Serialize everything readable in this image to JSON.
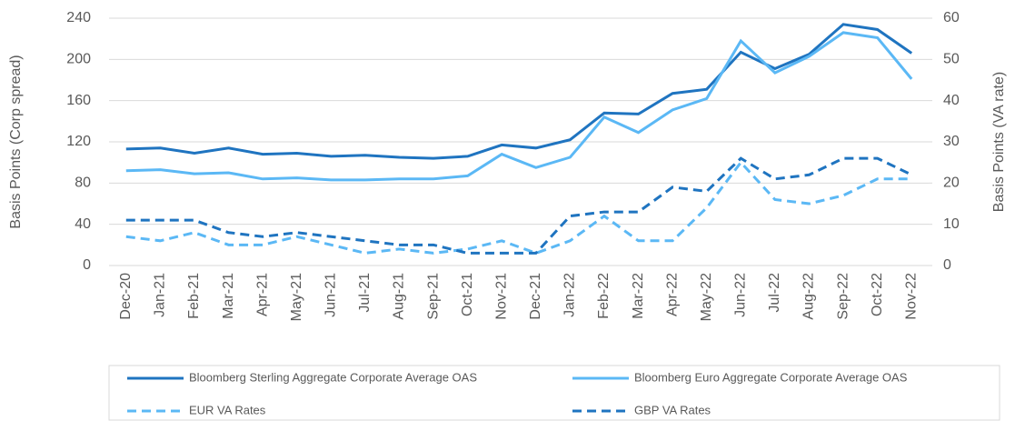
{
  "chart_data": {
    "type": "line",
    "categories": [
      "Dec-20",
      "Jan-21",
      "Feb-21",
      "Mar-21",
      "Apr-21",
      "May-21",
      "Jun-21",
      "Jul-21",
      "Aug-21",
      "Sep-21",
      "Oct-21",
      "Nov-21",
      "Dec-21",
      "Jan-22",
      "Feb-22",
      "Mar-22",
      "Apr-22",
      "May-22",
      "Jun-22",
      "Jul-22",
      "Aug-22",
      "Sep-22",
      "Oct-22",
      "Nov-22"
    ],
    "y_label": "Basis Points (Corp spread)",
    "y2_label": "Basis Points (VA rate)",
    "ylim": [
      0,
      240
    ],
    "yticks": [
      0,
      40,
      80,
      120,
      160,
      200,
      240
    ],
    "y2lim": [
      0,
      60
    ],
    "y2ticks": [
      0,
      10,
      20,
      30,
      40,
      50,
      60
    ],
    "grid": true,
    "legend": "bottom",
    "series": [
      {
        "name": "Bloomberg Sterling Aggregate Corporate Average OAS",
        "color": "#1f74c0",
        "line_style": "solid",
        "values": [
          113,
          114,
          109,
          114,
          108,
          109,
          106,
          107,
          105,
          104,
          106,
          117,
          114,
          122,
          148,
          147,
          167,
          171,
          207,
          191,
          205,
          234,
          229,
          206
        ]
      },
      {
        "name": "Bloomberg Euro Aggregate Corporate Average OAS",
        "color": "#5bb8f5",
        "line_style": "solid",
        "values": [
          92,
          93,
          89,
          90,
          84,
          85,
          83,
          83,
          84,
          84,
          87,
          108,
          95,
          105,
          144,
          129,
          151,
          162,
          218,
          187,
          203,
          226,
          221,
          181
        ]
      },
      {
        "name": "EUR VA Rates",
        "color": "#5bb8f5",
        "line_style": "dashed",
        "axis": "y2",
        "values": [
          7,
          6,
          8,
          5,
          5,
          7,
          5,
          3,
          4,
          3,
          4,
          6,
          3,
          6,
          12,
          6,
          6,
          14,
          25,
          16,
          15,
          17,
          21,
          21
        ]
      },
      {
        "name": "GBP VA Rates",
        "color": "#1f74c0",
        "line_style": "dashed",
        "axis": "y2",
        "values": [
          11,
          11,
          11,
          8,
          7,
          8,
          7,
          6,
          5,
          5,
          3,
          3,
          3,
          12,
          13,
          13,
          19,
          18,
          26,
          21,
          22,
          26,
          26,
          22
        ]
      }
    ]
  }
}
